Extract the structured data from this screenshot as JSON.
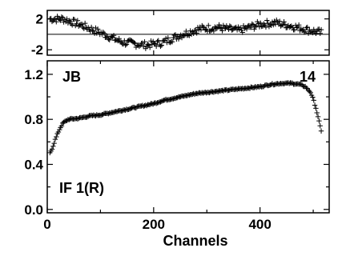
{
  "chart_data": [
    {
      "type": "scatter",
      "panel": "residual",
      "marker": "plus",
      "ylim": [
        -2.7,
        3.1
      ],
      "xlim": [
        0,
        530
      ],
      "yticks": [
        -2,
        2
      ],
      "ytick_labels": [
        "-2",
        "2"
      ],
      "zero_line": 0,
      "curve": [
        [
          5,
          2.0
        ],
        [
          30,
          2.0
        ],
        [
          60,
          1.3
        ],
        [
          100,
          0.2
        ],
        [
          140,
          -1.0
        ],
        [
          185,
          -1.4
        ],
        [
          215,
          -1.1
        ],
        [
          250,
          -0.1
        ],
        [
          285,
          0.7
        ],
        [
          320,
          0.9
        ],
        [
          360,
          0.5
        ],
        [
          400,
          1.3
        ],
        [
          430,
          1.5
        ],
        [
          470,
          0.9
        ],
        [
          515,
          0.2
        ]
      ]
    },
    {
      "type": "scatter",
      "panel": "bandpass",
      "marker": "plus",
      "xlabel": "Channels",
      "xlim": [
        0,
        530
      ],
      "ylim": [
        -0.03,
        1.32
      ],
      "xticks": [
        0,
        200,
        400
      ],
      "xtick_labels": [
        "0",
        "200",
        "400"
      ],
      "yticks": [
        0.0,
        0.4,
        0.8,
        1.2
      ],
      "ytick_labels": [
        "0.0",
        "0.4",
        "0.8",
        "1.2"
      ],
      "annotations": {
        "top_left": "JB",
        "top_right": "14",
        "bottom_left": "IF 1(R)"
      },
      "curve": [
        [
          5,
          0.5
        ],
        [
          10,
          0.55
        ],
        [
          15,
          0.62
        ],
        [
          20,
          0.68
        ],
        [
          25,
          0.73
        ],
        [
          30,
          0.77
        ],
        [
          40,
          0.8
        ],
        [
          60,
          0.81
        ],
        [
          80,
          0.83
        ],
        [
          100,
          0.84
        ],
        [
          120,
          0.86
        ],
        [
          140,
          0.88
        ],
        [
          160,
          0.9
        ],
        [
          180,
          0.92
        ],
        [
          200,
          0.94
        ],
        [
          220,
          0.97
        ],
        [
          240,
          0.99
        ],
        [
          260,
          1.01
        ],
        [
          280,
          1.03
        ],
        [
          300,
          1.04
        ],
        [
          320,
          1.05
        ],
        [
          340,
          1.06
        ],
        [
          360,
          1.07
        ],
        [
          380,
          1.08
        ],
        [
          400,
          1.09
        ],
        [
          420,
          1.11
        ],
        [
          440,
          1.12
        ],
        [
          460,
          1.12
        ],
        [
          475,
          1.11
        ],
        [
          485,
          1.09
        ],
        [
          495,
          1.04
        ],
        [
          500,
          0.98
        ],
        [
          505,
          0.9
        ],
        [
          510,
          0.8
        ],
        [
          515,
          0.7
        ]
      ]
    }
  ]
}
